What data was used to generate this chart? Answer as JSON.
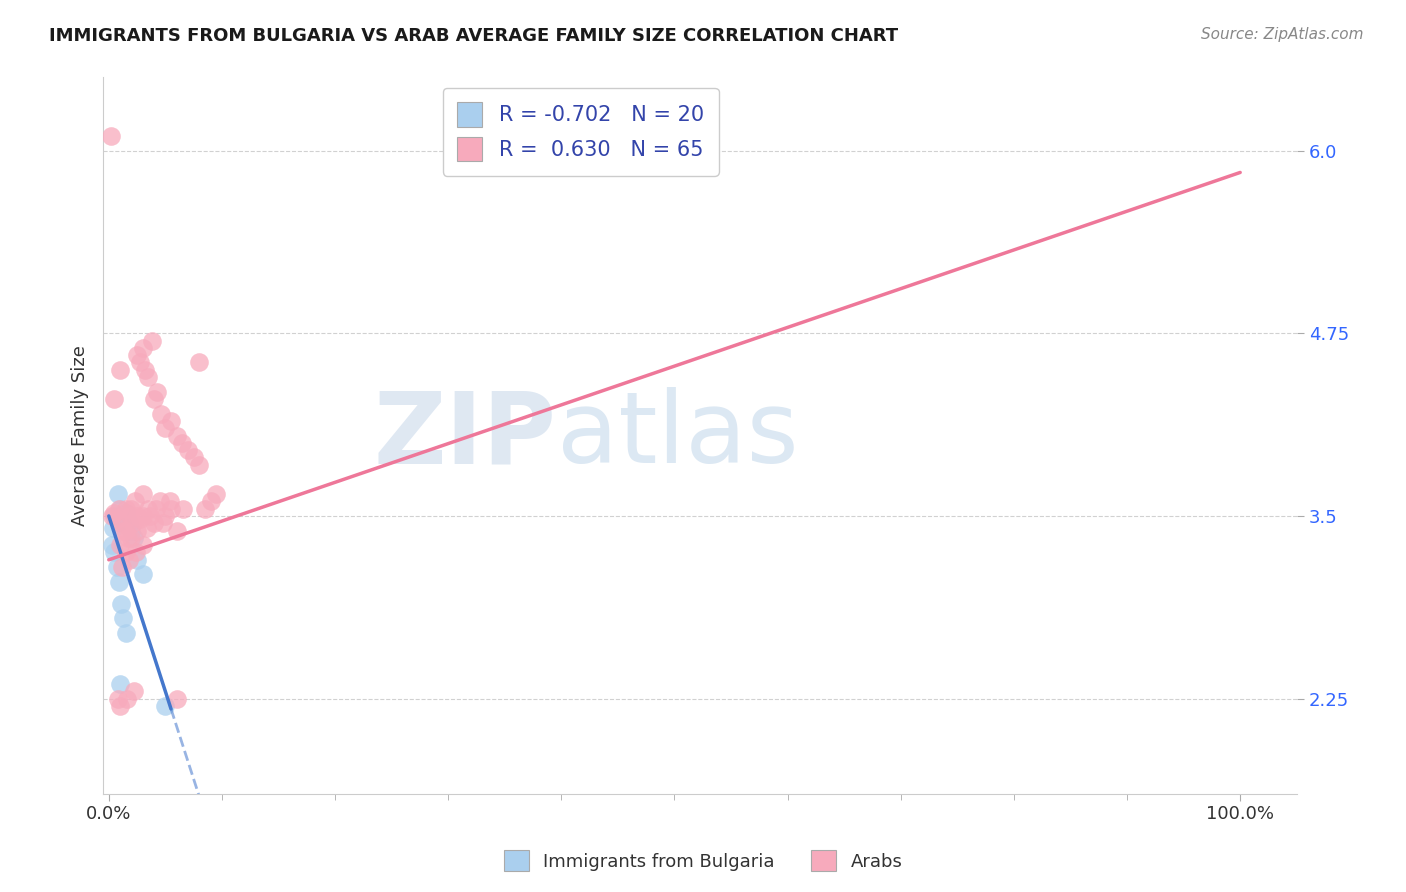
{
  "title": "IMMIGRANTS FROM BULGARIA VS ARAB AVERAGE FAMILY SIZE CORRELATION CHART",
  "source": "Source: ZipAtlas.com",
  "ylabel": "Average Family Size",
  "yticks": [
    2.25,
    3.5,
    4.75,
    6.0
  ],
  "ytick_color": "#3366ff",
  "background_color": "#ffffff",
  "grid_color": "#cccccc",
  "legend_label_1": "Immigrants from Bulgaria",
  "legend_label_2": "Arabs",
  "bulgaria_color": "#aacfee",
  "arab_color": "#f7aabc",
  "bulgaria_line_color": "#4477cc",
  "arab_line_color": "#ee7799",
  "bulgaria_points_x": [
    0.5,
    0.8,
    1.0,
    1.2,
    1.5,
    1.8,
    2.0,
    2.2,
    2.5,
    3.0,
    0.3,
    0.5,
    0.7,
    0.9,
    1.1,
    1.3,
    1.5,
    5.0,
    1.0,
    0.4
  ],
  "bulgaria_points_y": [
    3.5,
    3.65,
    3.55,
    3.48,
    3.52,
    3.45,
    3.4,
    3.35,
    3.2,
    3.1,
    3.3,
    3.25,
    3.15,
    3.05,
    2.9,
    2.8,
    2.7,
    2.2,
    2.35,
    3.42
  ],
  "arab_points_x": [
    0.3,
    0.5,
    0.7,
    0.9,
    1.1,
    1.3,
    1.5,
    1.7,
    1.9,
    2.1,
    2.3,
    2.5,
    2.8,
    3.0,
    3.2,
    3.5,
    3.8,
    4.0,
    4.3,
    4.6,
    5.0,
    5.5,
    6.0,
    6.5,
    7.0,
    7.5,
    8.0,
    8.5,
    9.0,
    9.5,
    1.0,
    1.5,
    2.0,
    2.5,
    3.0,
    3.5,
    4.0,
    4.5,
    5.0,
    5.5,
    1.2,
    1.8,
    2.4,
    3.0,
    3.6,
    4.2,
    4.8,
    5.4,
    6.0,
    6.6,
    0.5,
    1.0,
    1.5,
    2.0,
    2.5,
    3.0,
    0.2,
    8.0,
    0.8,
    6.0,
    1.0,
    1.6,
    2.2,
    2.8,
    3.4
  ],
  "arab_points_y": [
    3.5,
    3.52,
    3.48,
    3.55,
    3.45,
    3.4,
    3.55,
    3.35,
    3.5,
    3.45,
    3.6,
    4.6,
    4.55,
    4.65,
    4.5,
    4.45,
    4.7,
    4.3,
    4.35,
    4.2,
    4.1,
    4.15,
    4.05,
    4.0,
    3.95,
    3.9,
    3.85,
    3.55,
    3.6,
    3.65,
    3.3,
    3.25,
    3.35,
    3.4,
    3.5,
    3.55,
    3.45,
    3.6,
    3.5,
    3.55,
    3.15,
    3.2,
    3.25,
    3.3,
    3.5,
    3.55,
    3.45,
    3.6,
    3.4,
    3.55,
    4.3,
    4.5,
    3.4,
    3.55,
    3.5,
    3.65,
    6.1,
    4.55,
    2.25,
    2.25,
    2.2,
    2.25,
    2.3,
    3.48,
    3.42
  ],
  "bul_line_x0": 0.0,
  "bul_line_x1": 5.5,
  "bul_line_y0": 3.5,
  "bul_line_y1": 2.18,
  "bul_dash_x0": 5.5,
  "bul_dash_x1": 100.0,
  "arab_line_x0": 0.0,
  "arab_line_x1": 100.0,
  "arab_line_y0": 3.2,
  "arab_line_y1": 5.85,
  "xlim": [
    -0.5,
    105.0
  ],
  "ylim": [
    1.6,
    6.5
  ],
  "figsize": [
    14.06,
    8.92
  ],
  "dpi": 100
}
